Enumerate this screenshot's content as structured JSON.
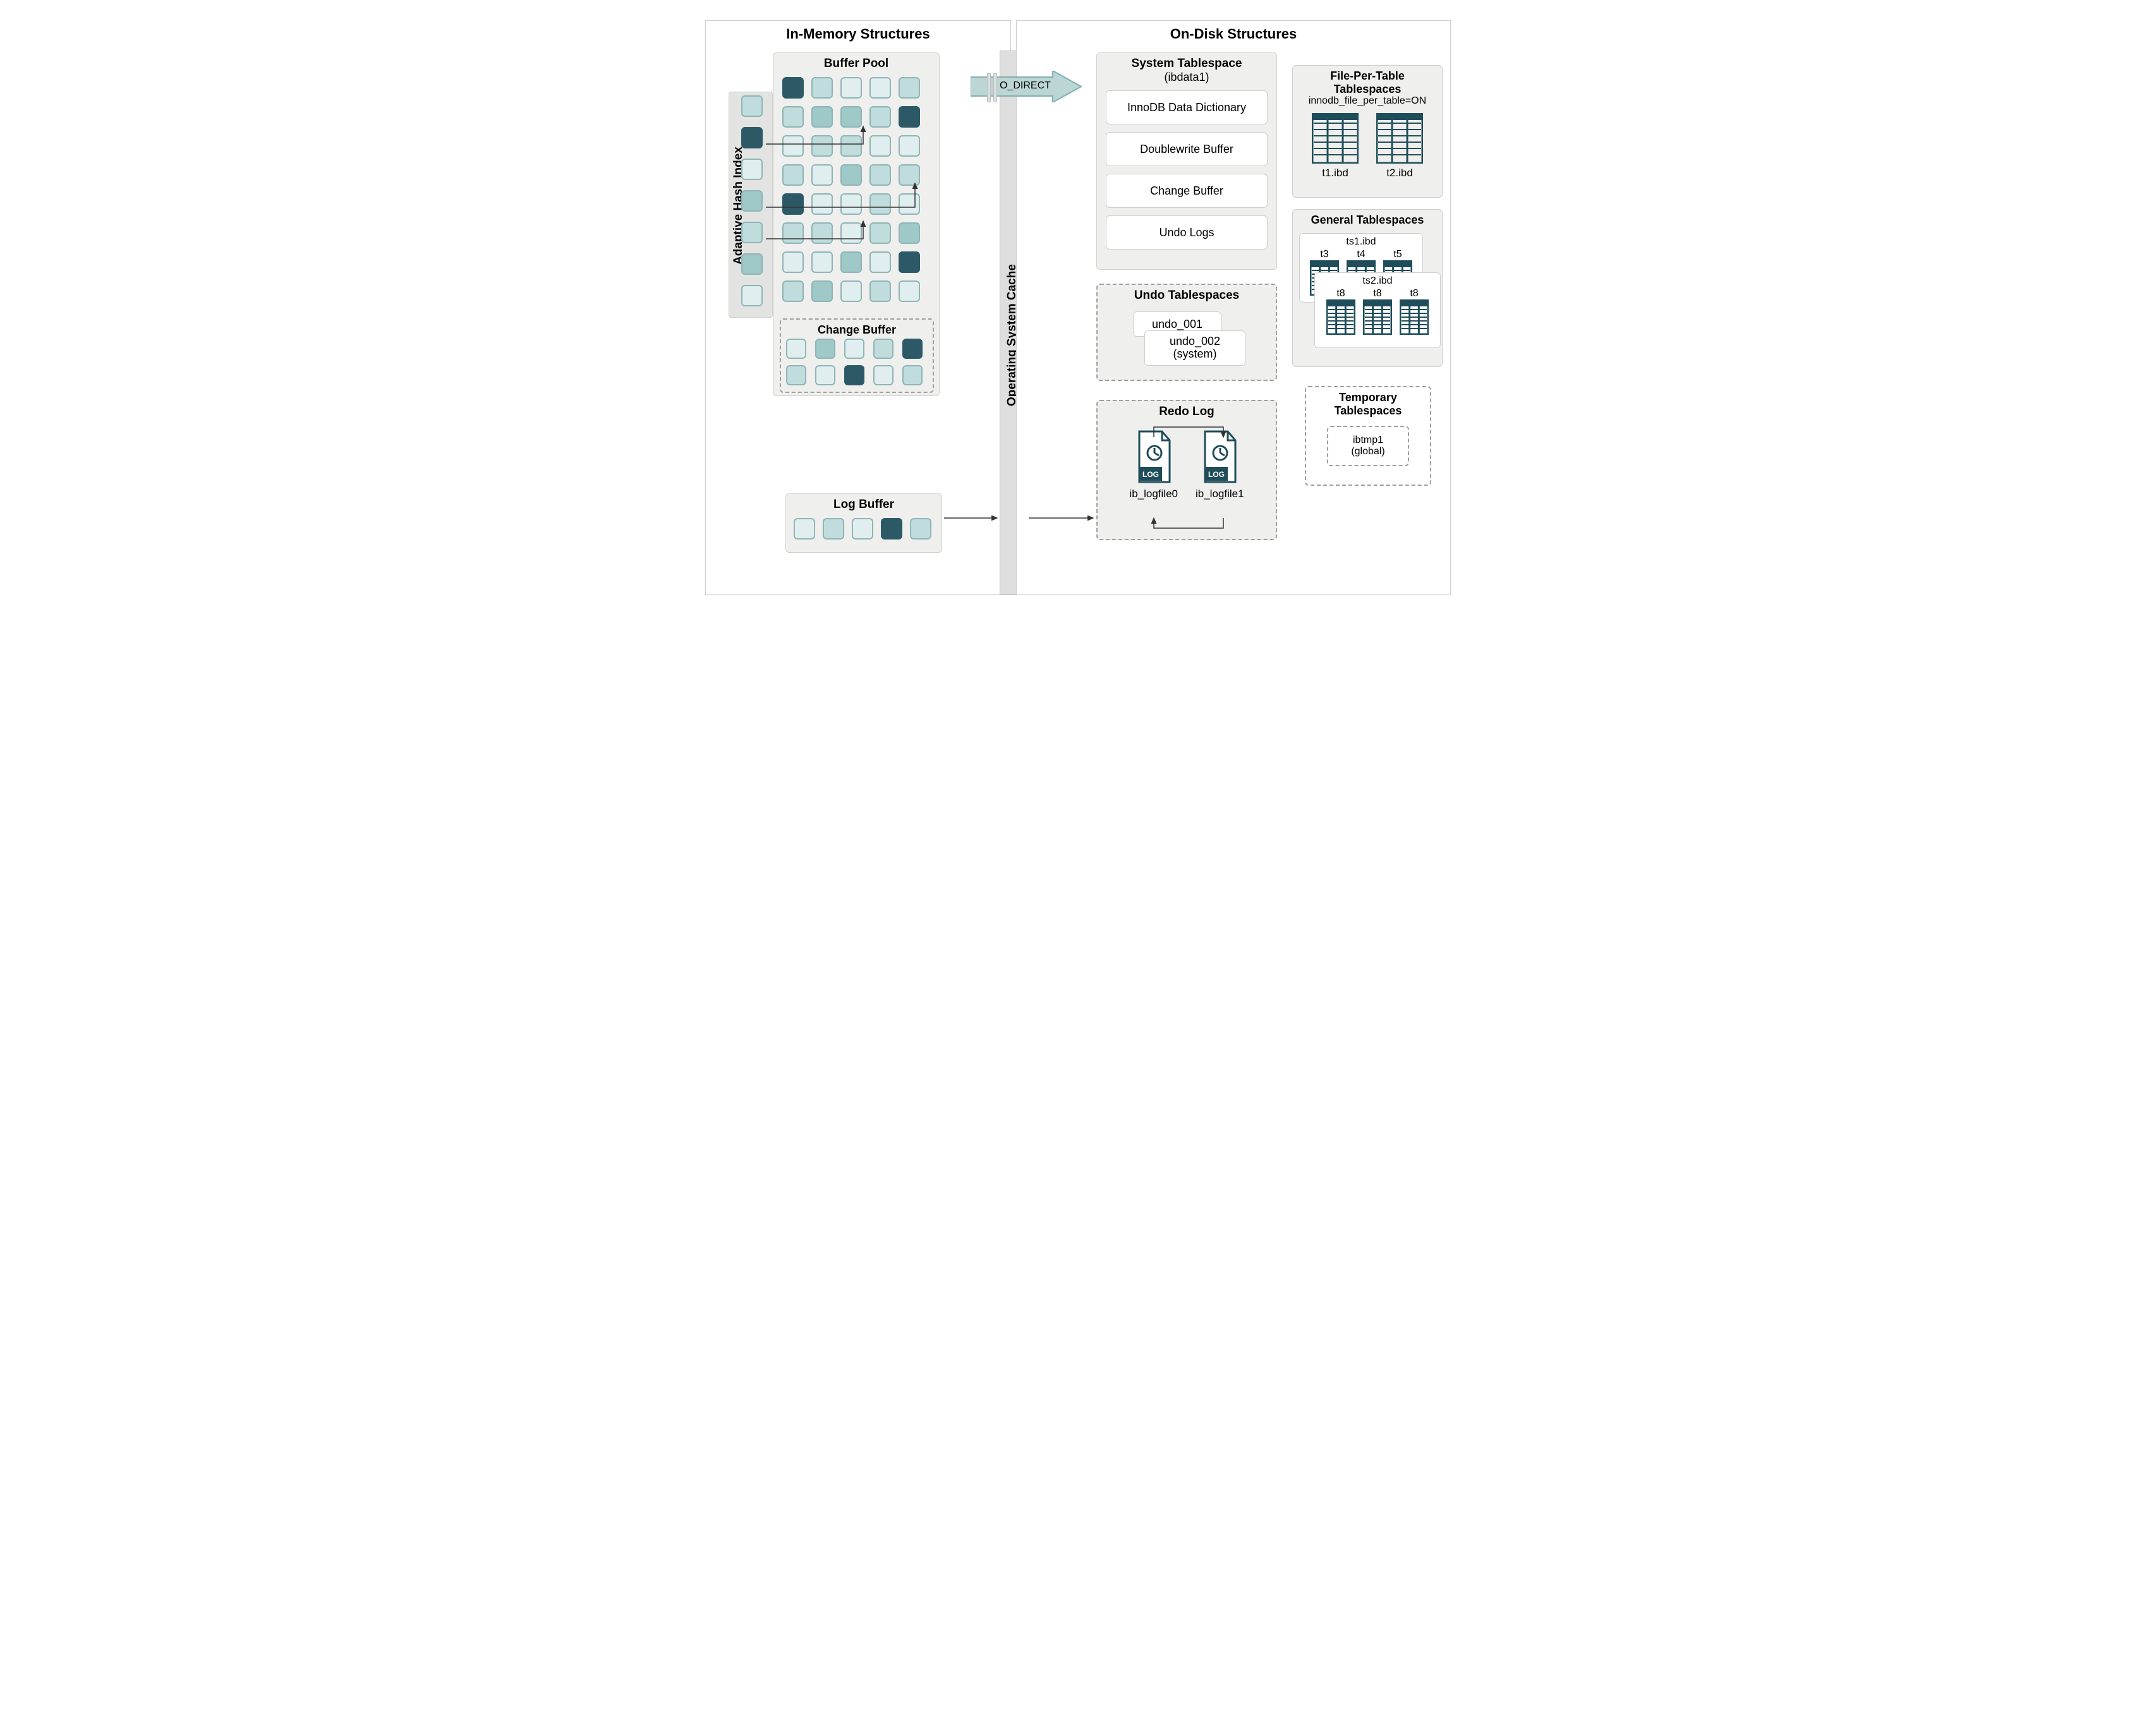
{
  "type": "architecture-diagram",
  "title_left": "In-Memory Structures",
  "title_right": "On-Disk Structures",
  "colors": {
    "panel_border": "#cfcfcf",
    "region_bg": "#efefee",
    "region_dashed_border": "#9f9f9f",
    "os_cache_bg": "#dedede",
    "text": "#222222",
    "cell_border_light": "#8fb5b6",
    "cell_border_dark": "#2b5b68",
    "cell_fill_1": "#e0eeef",
    "cell_fill_2": "#c0dcdc",
    "cell_fill_3": "#9fc8c8",
    "cell_fill_4": "#2c5965",
    "arrow_teal": "#82b4b5",
    "icon_stroke": "#1f4d5a"
  },
  "in_memory": {
    "buffer_pool": {
      "title": "Buffer Pool",
      "grid": {
        "cols": 5,
        "rows": 8,
        "cell_colors": [
          [
            4,
            2,
            1,
            1,
            2
          ],
          [
            2,
            3,
            3,
            2,
            4
          ],
          [
            1,
            2,
            2,
            1,
            1
          ],
          [
            2,
            1,
            3,
            2,
            2
          ],
          [
            4,
            1,
            1,
            2,
            1
          ],
          [
            2,
            2,
            1,
            2,
            3
          ],
          [
            1,
            1,
            3,
            1,
            4
          ],
          [
            2,
            3,
            1,
            2,
            1
          ]
        ]
      }
    },
    "adaptive_hash_index": {
      "title": "Adaptive Hash Index",
      "col_colors": [
        2,
        4,
        1,
        3,
        2,
        3,
        1
      ]
    },
    "change_buffer": {
      "title": "Change Buffer",
      "grid": {
        "cols": 5,
        "rows": 2,
        "cell_colors": [
          [
            1,
            3,
            1,
            2,
            4
          ],
          [
            2,
            1,
            4,
            1,
            2
          ]
        ]
      }
    },
    "log_buffer": {
      "title": "Log Buffer",
      "row_colors": [
        1,
        2,
        1,
        4,
        2
      ]
    }
  },
  "os_cache": {
    "title": "Operating System Cache",
    "bypass_label": "O_DIRECT"
  },
  "on_disk": {
    "system_tablespace": {
      "title": "System Tablespace",
      "subtitle": "(ibdata1)",
      "items": [
        "InnoDB Data Dictionary",
        "Doublewrite Buffer",
        "Change Buffer",
        "Undo Logs"
      ]
    },
    "undo_tablespaces": {
      "title": "Undo Tablespaces",
      "files": [
        "undo_001",
        "undo_002 (system)"
      ]
    },
    "redo_log": {
      "title": "Redo Log",
      "files": [
        "ib_logfile0",
        "ib_logfile1"
      ]
    },
    "file_per_table": {
      "title": "File-Per-Table Tablespaces",
      "setting": "innodb_file_per_table=ON",
      "files": [
        "t1.ibd",
        "t2.ibd"
      ]
    },
    "general_tablespaces": {
      "title": "General Tablespaces",
      "groups": [
        {
          "name": "ts1.ibd",
          "tables": [
            "t3",
            "t4",
            "t5"
          ]
        },
        {
          "name": "ts2.ibd",
          "tables": [
            "t8",
            "t8",
            "t8"
          ]
        }
      ]
    },
    "temporary_tablespaces": {
      "title": "Temporary Tablespaces",
      "file": "ibtmp1",
      "scope": "(global)"
    }
  }
}
